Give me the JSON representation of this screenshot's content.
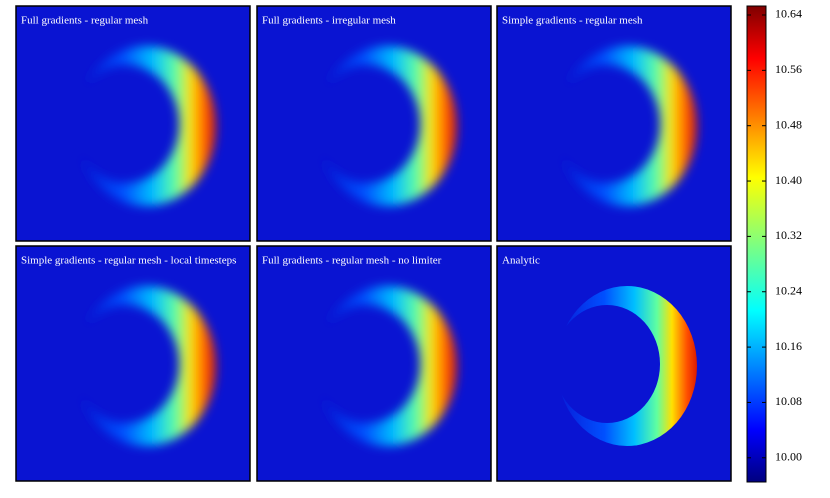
{
  "chart_data": {
    "type": "heatmap",
    "panels": [
      {
        "title": "Full gradients - regular mesh"
      },
      {
        "title": "Full gradients - irregular mesh"
      },
      {
        "title": "Simple gradients - regular mesh"
      },
      {
        "title": "Simple gradients - regular mesh - local timesteps"
      },
      {
        "title": "Full gradients - regular mesh - no limiter"
      },
      {
        "title": "Analytic"
      }
    ],
    "zlim": [
      9.965,
      10.653
    ],
    "zticks": [
      {
        "value": 10,
        "label": "10.00"
      },
      10.08,
      10.16,
      10.24,
      10.32,
      {
        "value": 10.4,
        "label": "10.40"
      },
      10.48,
      10.56,
      10.64
    ]
  }
}
